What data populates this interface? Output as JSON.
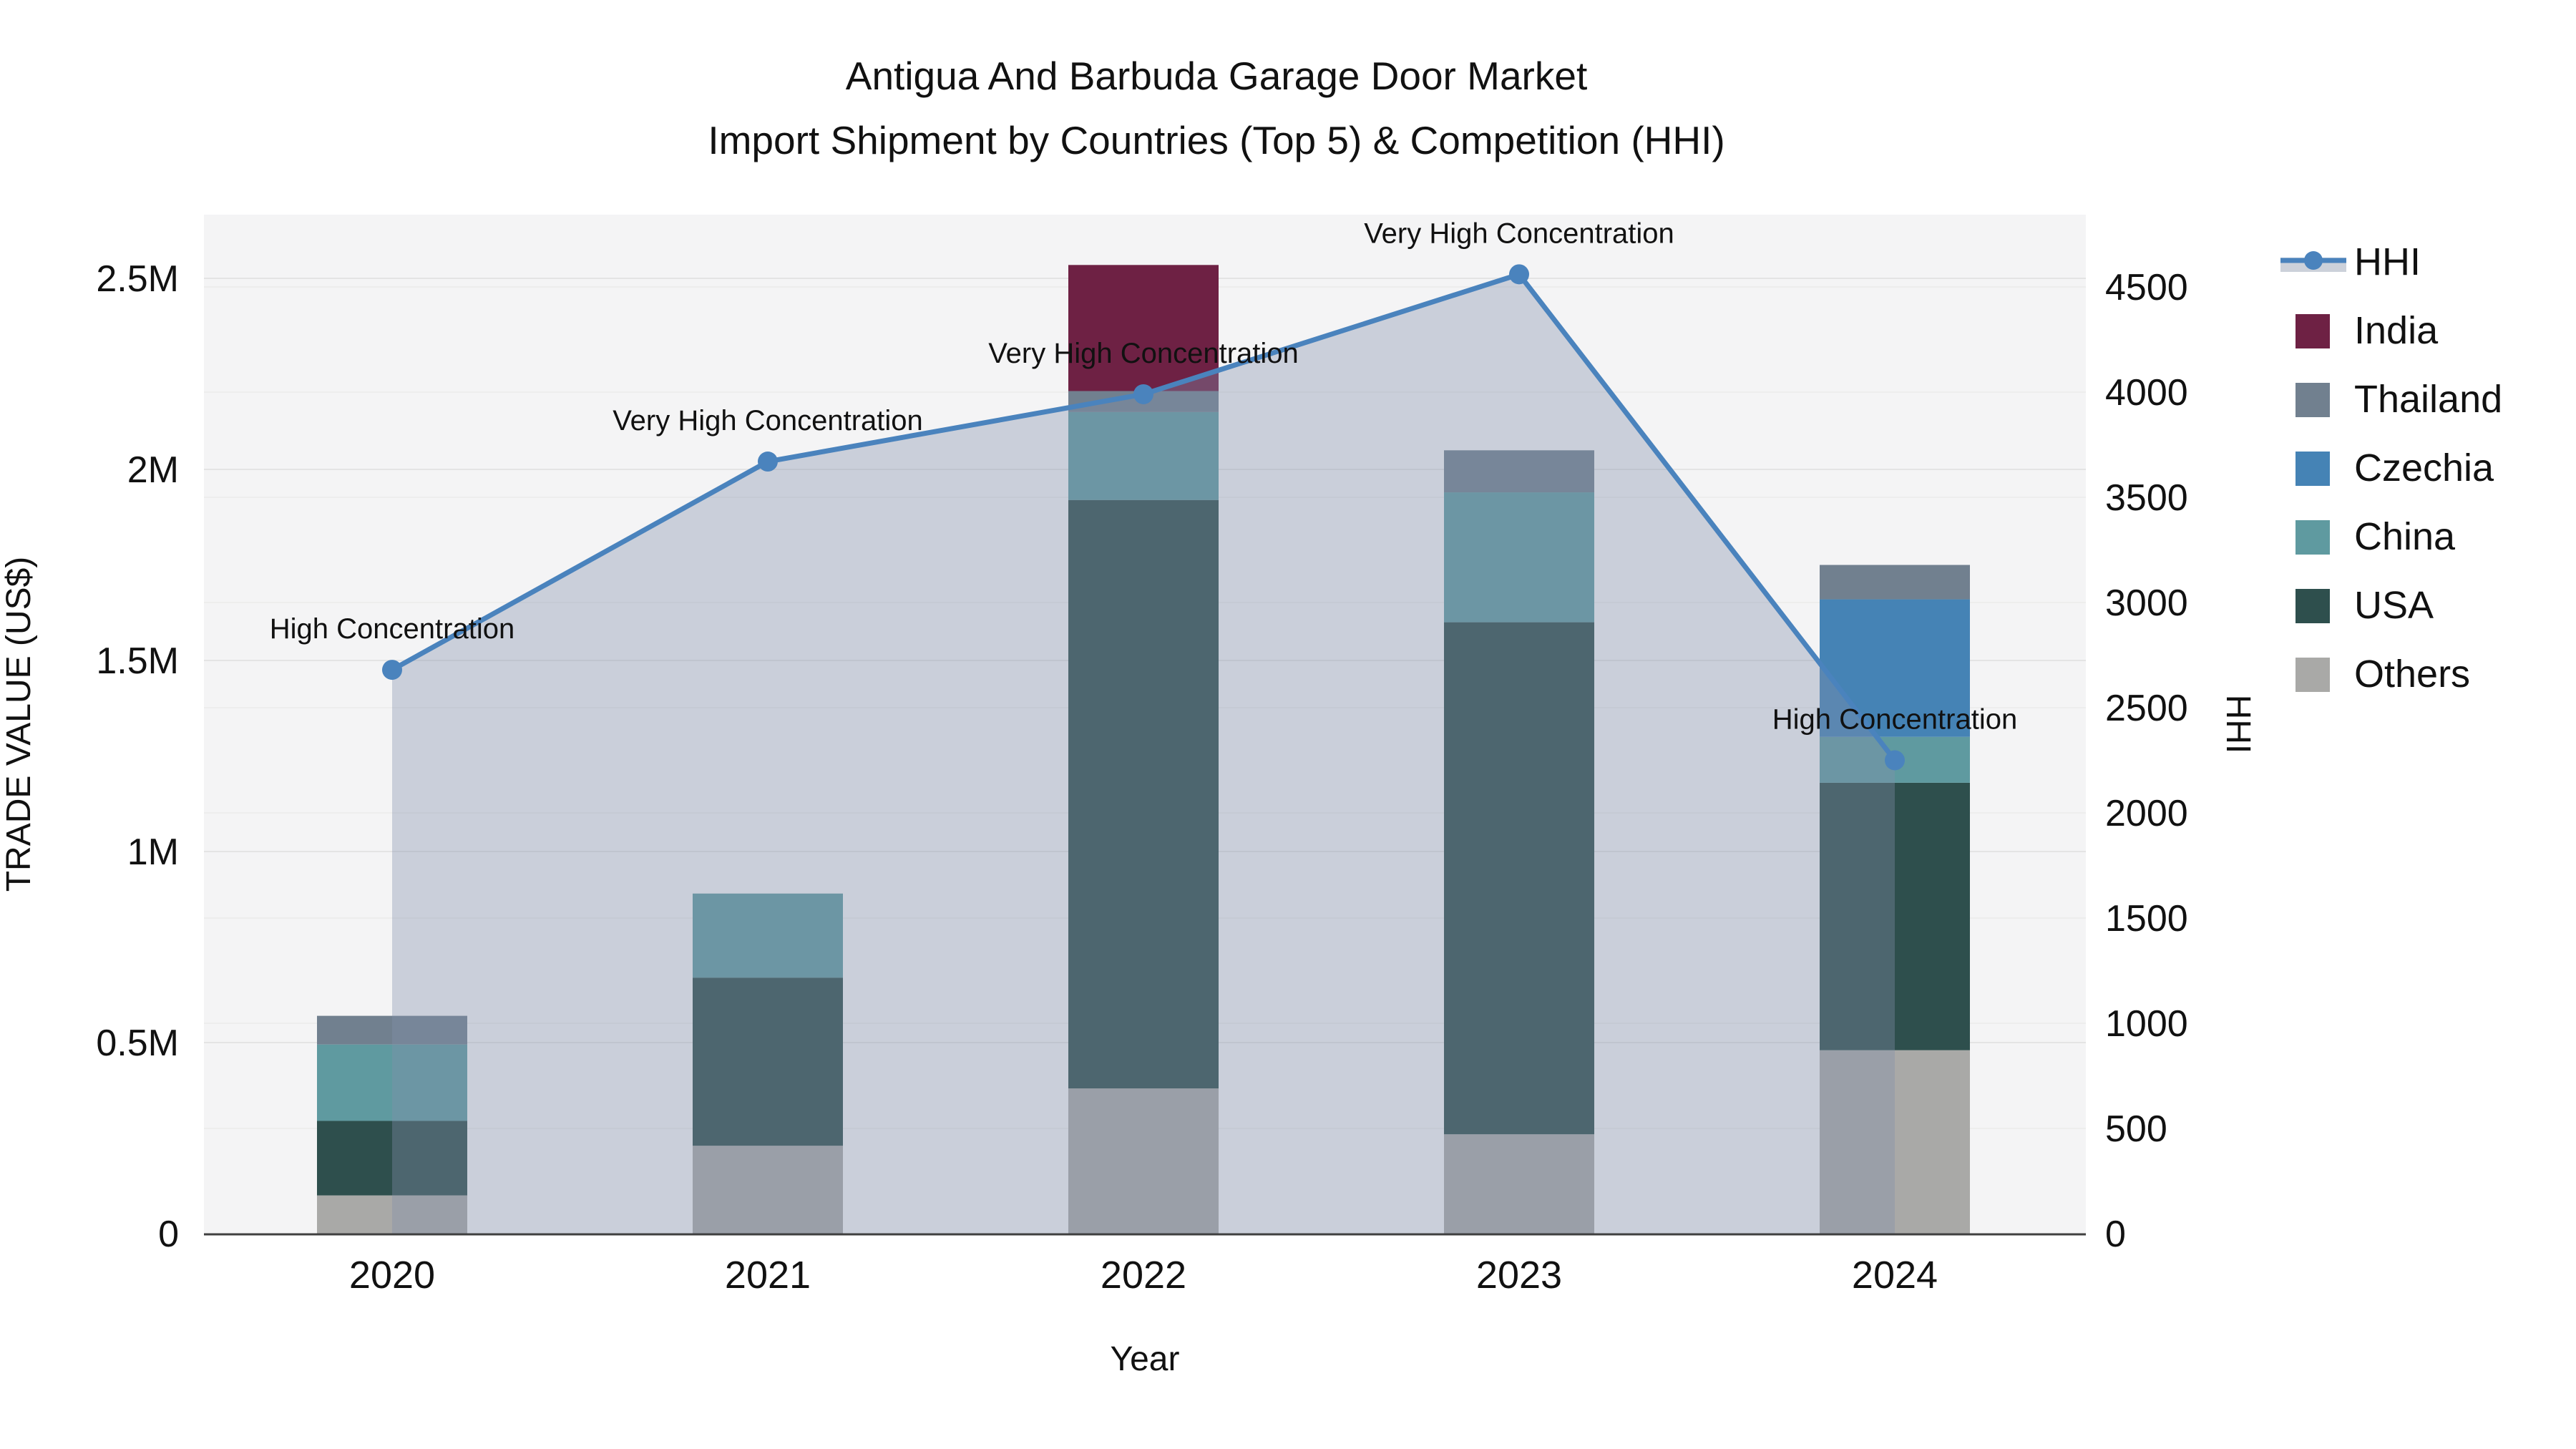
{
  "title": {
    "line1": "Antigua And Barbuda Garage Door Market",
    "line2": "Import Shipment by Countries (Top 5) & Competition (HHI)"
  },
  "axes": {
    "x": {
      "title": "Year",
      "ticks": [
        "2020",
        "2021",
        "2022",
        "2023",
        "2024"
      ]
    },
    "y_left": {
      "title": "TRADE VALUE (US$)",
      "ticks": [
        {
          "label": "0",
          "value": 0
        },
        {
          "label": "0.5M",
          "value": 500000
        },
        {
          "label": "1M",
          "value": 1000000
        },
        {
          "label": "1.5M",
          "value": 1500000
        },
        {
          "label": "2M",
          "value": 2000000
        },
        {
          "label": "2.5M",
          "value": 2500000
        }
      ]
    },
    "y_right": {
      "title": "HHI",
      "ticks": [
        {
          "label": "0",
          "value": 0
        },
        {
          "label": "500",
          "value": 500
        },
        {
          "label": "1000",
          "value": 1000
        },
        {
          "label": "1500",
          "value": 1500
        },
        {
          "label": "2000",
          "value": 2000
        },
        {
          "label": "2500",
          "value": 2500
        },
        {
          "label": "3000",
          "value": 3000
        },
        {
          "label": "3500",
          "value": 3500
        },
        {
          "label": "4000",
          "value": 4000
        },
        {
          "label": "4500",
          "value": 4500
        }
      ]
    }
  },
  "legend": {
    "items": [
      {
        "label": "HHI",
        "type": "line",
        "color": "#4a83bd"
      },
      {
        "label": "India",
        "type": "swatch",
        "color": "#6e2144"
      },
      {
        "label": "Thailand",
        "type": "swatch",
        "color": "#71808f"
      },
      {
        "label": "Czechia",
        "type": "swatch",
        "color": "#4583b5"
      },
      {
        "label": "China",
        "type": "swatch",
        "color": "#5f9aa0"
      },
      {
        "label": "USA",
        "type": "swatch",
        "color": "#2e4f4d"
      },
      {
        "label": "Others",
        "type": "swatch",
        "color": "#a9a9a7"
      }
    ]
  },
  "chart_data": {
    "type": "bar+line",
    "categories": [
      "2020",
      "2021",
      "2022",
      "2023",
      "2024"
    ],
    "stack_order": [
      "Others",
      "USA",
      "China",
      "Czechia",
      "Thailand",
      "India"
    ],
    "series": [
      {
        "name": "India",
        "values": [
          0,
          0,
          330000,
          0,
          0
        ]
      },
      {
        "name": "Thailand",
        "values": [
          75000,
          0,
          55000,
          110000,
          90000
        ]
      },
      {
        "name": "Czechia",
        "values": [
          0,
          0,
          0,
          0,
          360000
        ]
      },
      {
        "name": "China",
        "values": [
          200000,
          220000,
          230000,
          340000,
          120000
        ]
      },
      {
        "name": "USA",
        "values": [
          195000,
          440000,
          1540000,
          1340000,
          700000
        ]
      },
      {
        "name": "Others",
        "values": [
          100000,
          230000,
          380000,
          260000,
          480000
        ]
      }
    ],
    "line_series": {
      "name": "HHI",
      "values": [
        2680,
        3670,
        3990,
        4560,
        2250
      ]
    },
    "annotations": [
      "High Concentration",
      "Very High Concentration",
      "Very High Concentration",
      "Very High Concentration",
      "High Concentration"
    ],
    "xlabel": "Year",
    "ylabel_left": "TRADE VALUE (US$)",
    "ylabel_right": "HHI",
    "ylim_left": [
      0,
      2500000
    ],
    "ylim_right": [
      0,
      4500
    ],
    "legend_position": "right",
    "grid": true
  },
  "colors": {
    "plot_background": "#f4f4f5",
    "grid_left": "#e4e4e4",
    "grid_right": "#ededed",
    "axis_line": "#3f3f3f",
    "hhi_line": "#4a83bd",
    "hhi_fill": "rgba(130,144,171,0.37)",
    "legend_band": "#ccd1da",
    "series": {
      "India": "#6e2144",
      "Thailand": "#71808f",
      "Czechia": "#4583b5",
      "China": "#5f9aa0",
      "USA": "#2e4f4d",
      "Others": "#a9a9a7"
    }
  }
}
